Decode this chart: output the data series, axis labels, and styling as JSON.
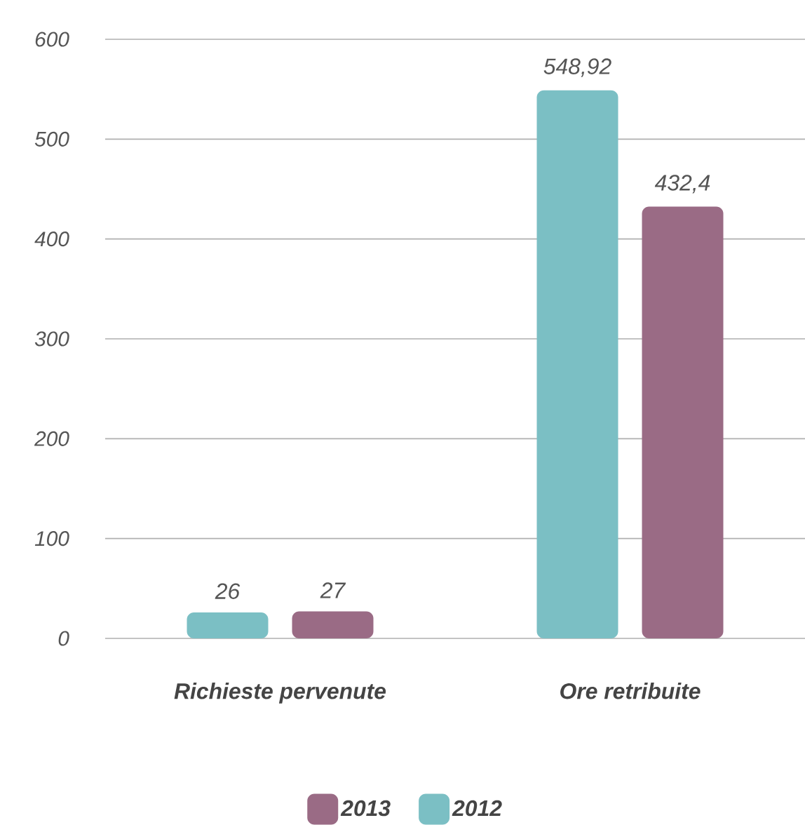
{
  "chart_data": {
    "type": "bar",
    "categories": [
      "Richieste pervenute",
      "Ore retribuite"
    ],
    "series": [
      {
        "name": "2012",
        "color": "#7bbfc4",
        "values": [
          26,
          548.92
        ],
        "value_labels": [
          "26",
          "548,92"
        ]
      },
      {
        "name": "2013",
        "color": "#9a6b85",
        "values": [
          27,
          432.4
        ],
        "value_labels": [
          "27",
          "432,4"
        ]
      }
    ],
    "ylim": [
      0,
      600
    ],
    "yticks": [
      0,
      100,
      200,
      300,
      400,
      500,
      600
    ],
    "grid": "y",
    "legend": "bottom"
  }
}
